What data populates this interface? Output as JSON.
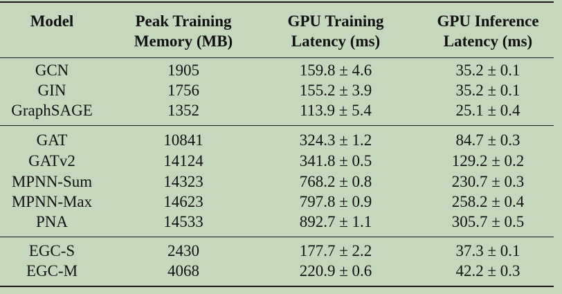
{
  "header": {
    "model": "Model",
    "memory": [
      "Peak Training",
      "Memory (MB)"
    ],
    "train": [
      "GPU Training",
      "Latency (ms)"
    ],
    "infer": [
      "GPU Inference",
      "Latency (ms)"
    ]
  },
  "groups": [
    [
      {
        "model": "GCN",
        "memory": "1905",
        "train": "159.8 ± 4.6",
        "infer": "35.2 ± 0.1"
      },
      {
        "model": "GIN",
        "memory": "1756",
        "train": "155.2 ± 3.9",
        "infer": "35.2 ± 0.1"
      },
      {
        "model": "GraphSAGE",
        "memory": "1352",
        "train": "113.9 ± 5.4",
        "infer": "25.1 ± 0.4"
      }
    ],
    [
      {
        "model": "GAT",
        "memory": "10841",
        "train": "324.3 ± 1.2",
        "infer": "84.7 ± 0.3"
      },
      {
        "model": "GATv2",
        "memory": "14124",
        "train": "341.8 ± 0.5",
        "infer": "129.2 ± 0.2"
      },
      {
        "model": "MPNN-Sum",
        "memory": "14323",
        "train": "768.2 ± 0.8",
        "infer": "230.7 ± 0.3"
      },
      {
        "model": "MPNN-Max",
        "memory": "14623",
        "train": "797.8 ± 0.9",
        "infer": "258.2 ± 0.4"
      },
      {
        "model": "PNA",
        "memory": "14533",
        "train": "892.7 ± 1.1",
        "infer": "305.7 ± 0.5"
      }
    ],
    [
      {
        "model": "EGC-S",
        "memory": "2430",
        "train": "177.7 ± 2.2",
        "infer": "37.3 ± 0.1"
      },
      {
        "model": "EGC-M",
        "memory": "4068",
        "train": "220.9 ± 0.6",
        "infer": "42.2 ± 0.3"
      }
    ]
  ]
}
